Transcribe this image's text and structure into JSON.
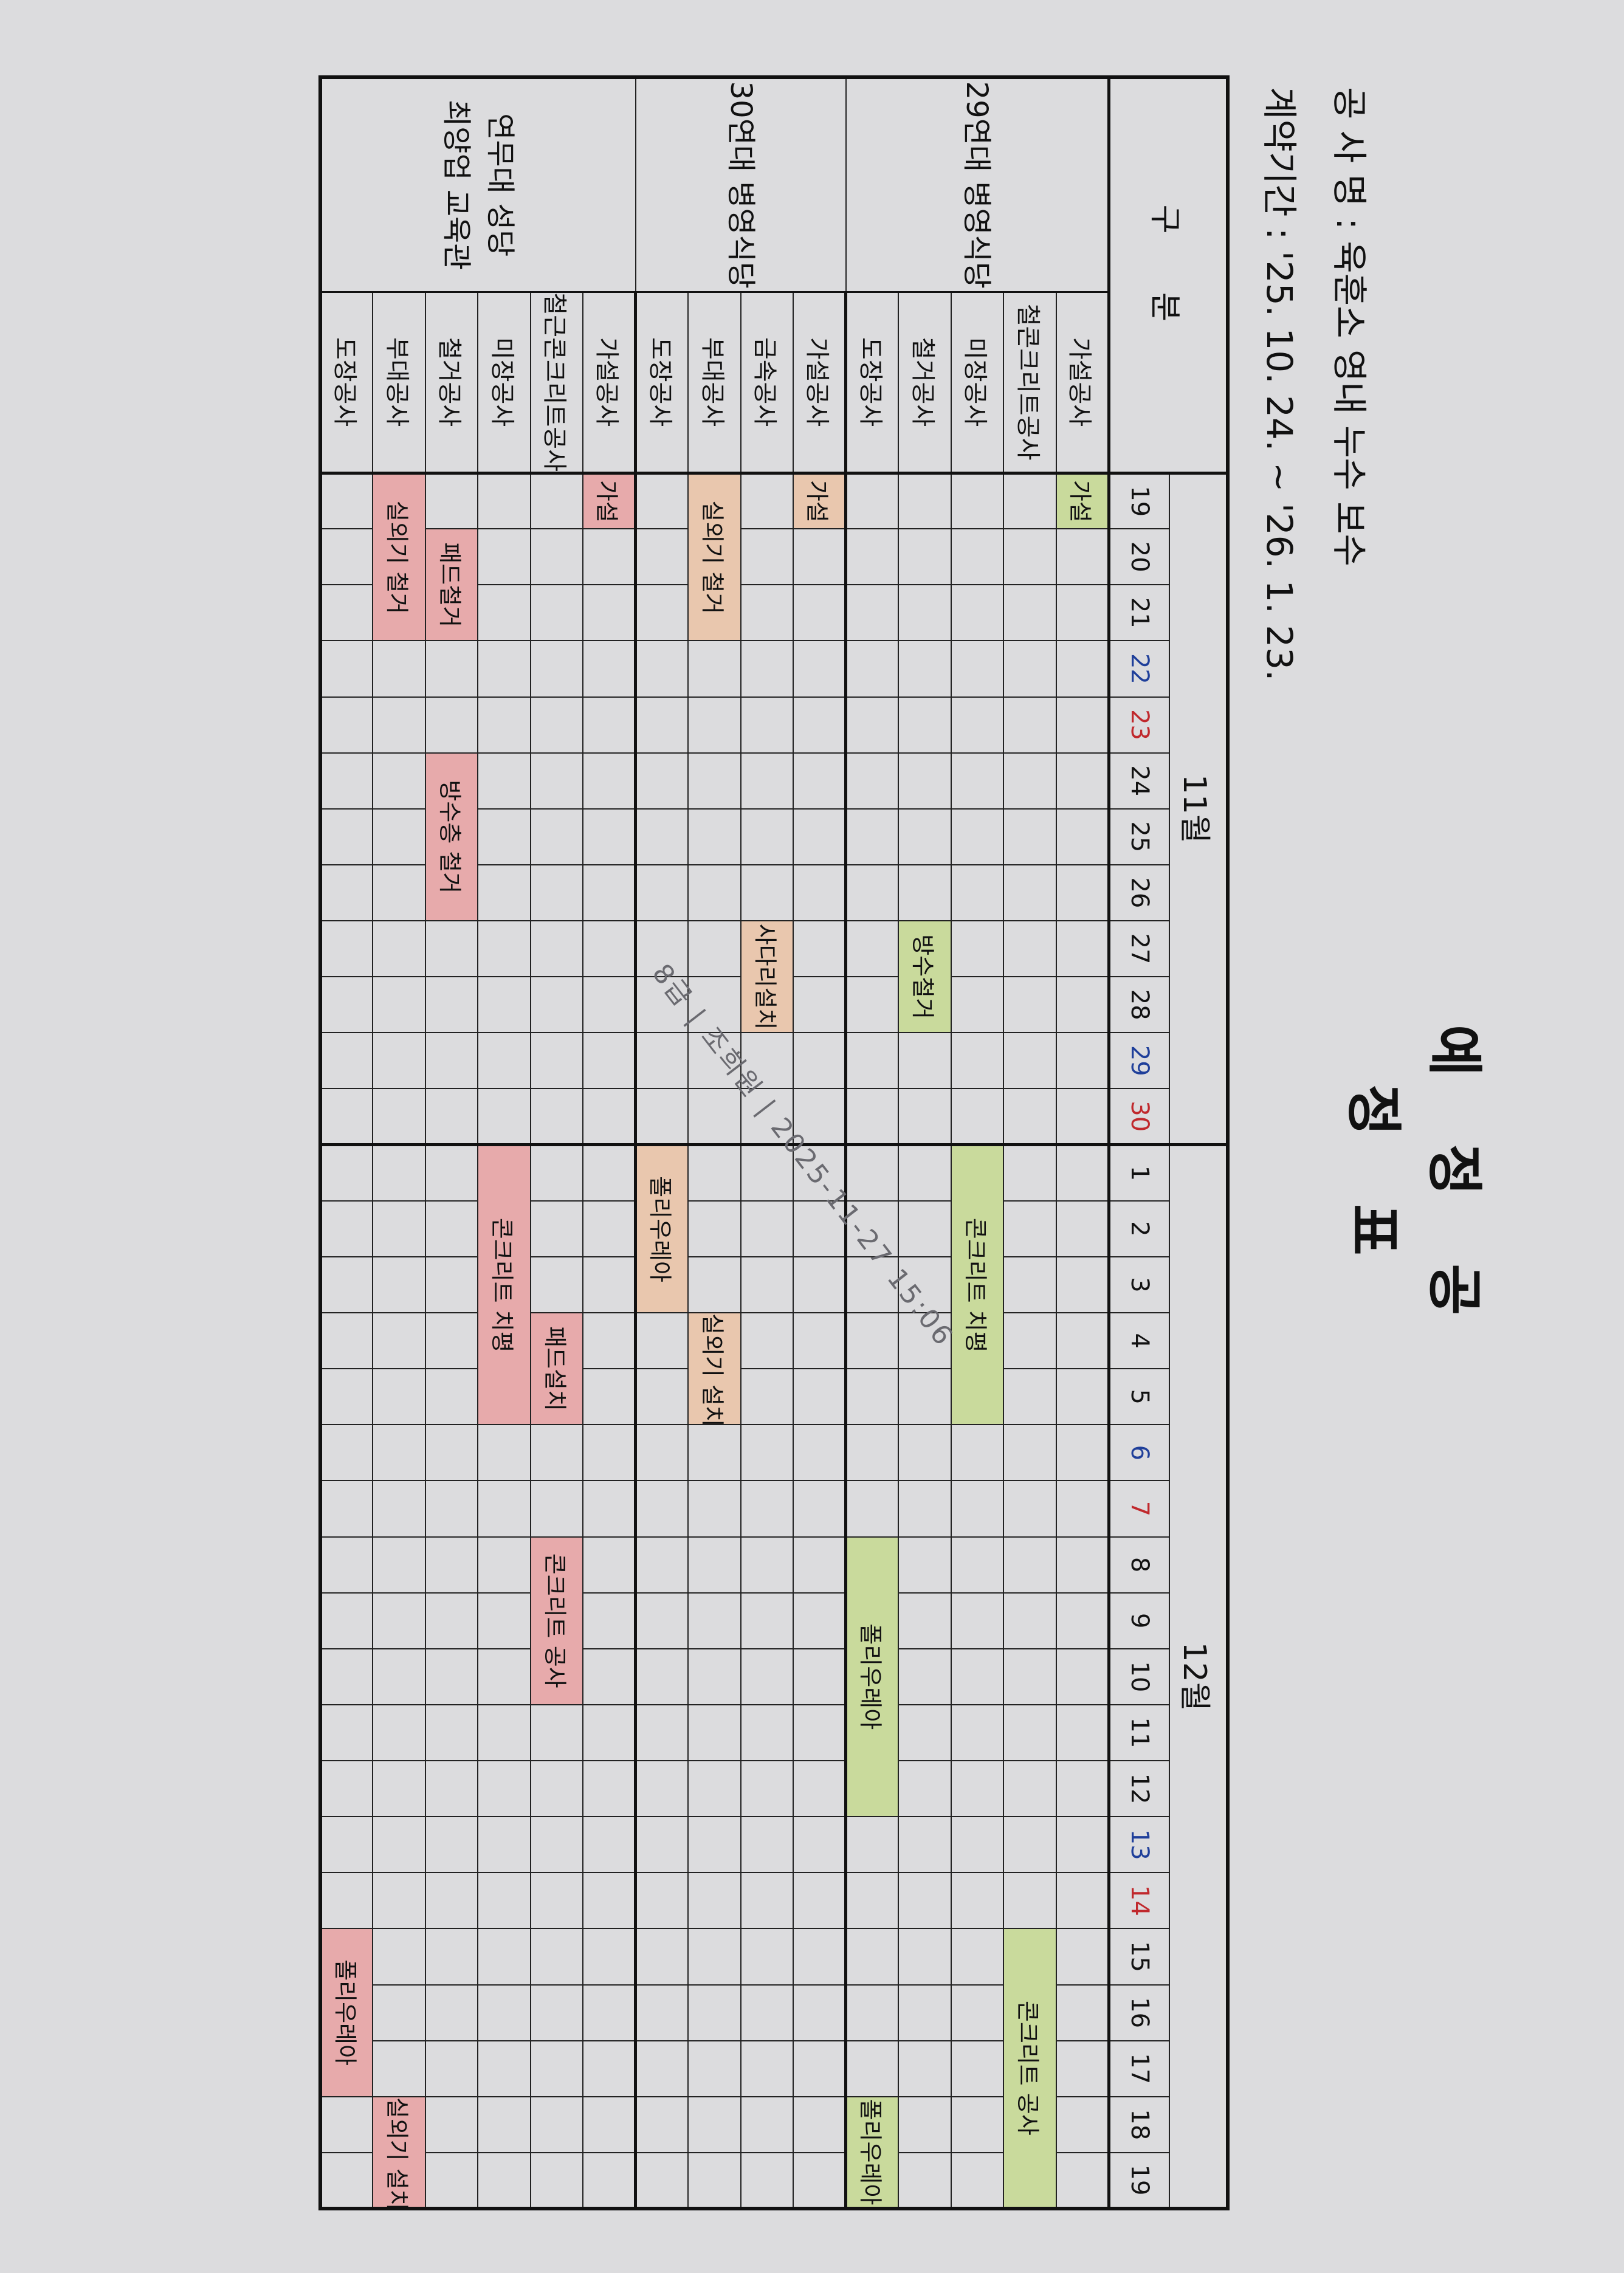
{
  "document": {
    "title": "예 정 공 정 표",
    "project_line": "공 사 명 : 육훈소 영내 누수 보수",
    "contract_line": "계약기간 : '25. 10. 24. ~ '26. 1. 23.",
    "header_label": "구 분",
    "stamp_text": "8급 | 조희원 | 2025-11-27 15:06"
  },
  "months": [
    {
      "label": "11월",
      "month": 11,
      "days": [
        19,
        20,
        21,
        22,
        23,
        24,
        25,
        26,
        27,
        28,
        29,
        30
      ]
    },
    {
      "label": "12월",
      "month": 12,
      "days": [
        1,
        2,
        3,
        4,
        5,
        6,
        7,
        8,
        9,
        10,
        11,
        12,
        13,
        14,
        15,
        16,
        17,
        18,
        19
      ]
    }
  ],
  "day_colors": {
    "saturday": "#1f3f9a",
    "sunday": "#c0282c",
    "weekday": "#111111"
  },
  "saturdays": [
    "11-22",
    "11-29",
    "12-6",
    "12-13"
  ],
  "sundays": [
    "11-23",
    "11-30",
    "12-7",
    "12-14"
  ],
  "bar_colors": {
    "green": "#c9da9c",
    "orange": "#e9c7ae",
    "pink": "#e7aaab"
  },
  "groups": [
    {
      "name": "29연대 병영식당",
      "color": "green",
      "tasks": [
        {
          "label": "가설공사",
          "bars": [
            {
              "text": "가설",
              "start": "11-19",
              "end": "11-19"
            }
          ]
        },
        {
          "label": "철콘크리트공사",
          "bars": [
            {
              "text": "콘크리트 공사",
              "start": "12-15",
              "end": "12-19"
            }
          ]
        },
        {
          "label": "미장공사",
          "bars": [
            {
              "text": "콘크리트 치평",
              "start": "12-1",
              "end": "12-5"
            }
          ]
        },
        {
          "label": "철거공사",
          "bars": [
            {
              "text": "방수철거",
              "start": "11-27",
              "end": "11-28"
            }
          ]
        },
        {
          "label": "도장공사",
          "bars": [
            {
              "text": "폴리우레아",
              "start": "12-8",
              "end": "12-12"
            },
            {
              "text": "폴리우레아",
              "start": "12-18",
              "end": "12-19"
            }
          ]
        }
      ]
    },
    {
      "name": "30연대 병영식당",
      "color": "orange",
      "tasks": [
        {
          "label": "가설공사",
          "bars": [
            {
              "text": "가설",
              "start": "11-19",
              "end": "11-19"
            }
          ]
        },
        {
          "label": "금속공사",
          "bars": [
            {
              "text": "사다리설치",
              "start": "11-27",
              "end": "11-28"
            }
          ]
        },
        {
          "label": "부대공사",
          "bars": [
            {
              "text": "실외기 철거",
              "start": "11-19",
              "end": "11-21"
            },
            {
              "text": "실외기 설치",
              "start": "12-4",
              "end": "12-5"
            }
          ]
        },
        {
          "label": "도장공사",
          "bars": [
            {
              "text": "폴리우레아",
              "start": "12-1",
              "end": "12-3"
            }
          ]
        }
      ]
    },
    {
      "name": "연무대 성당 최양업 교육관",
      "name_lines": [
        "연무대 성당",
        "최양업 교육관"
      ],
      "color": "pink",
      "tasks": [
        {
          "label": "가설공사",
          "bars": [
            {
              "text": "가설",
              "start": "11-19",
              "end": "11-19"
            }
          ]
        },
        {
          "label": "철근콘크리트공사",
          "bars": [
            {
              "text": "패드설치",
              "start": "12-4",
              "end": "12-5"
            },
            {
              "text": "콘크리트 공사",
              "start": "12-8",
              "end": "12-10"
            }
          ]
        },
        {
          "label": "미장공사",
          "bars": [
            {
              "text": "콘크리트 치평",
              "start": "12-1",
              "end": "12-5"
            }
          ]
        },
        {
          "label": "철거공사",
          "bars": [
            {
              "text": "패드철거",
              "start": "11-20",
              "end": "11-21"
            },
            {
              "text": "방수층 철거",
              "start": "11-24",
              "end": "11-26"
            }
          ]
        },
        {
          "label": "부대공사",
          "bars": [
            {
              "text": "실외기 철거",
              "start": "11-19",
              "end": "11-21"
            },
            {
              "text": "실외기 설치",
              "start": "12-18",
              "end": "12-19"
            }
          ]
        },
        {
          "label": "도장공사",
          "bars": [
            {
              "text": "폴리우레아",
              "start": "12-15",
              "end": "12-17"
            }
          ]
        }
      ]
    }
  ]
}
